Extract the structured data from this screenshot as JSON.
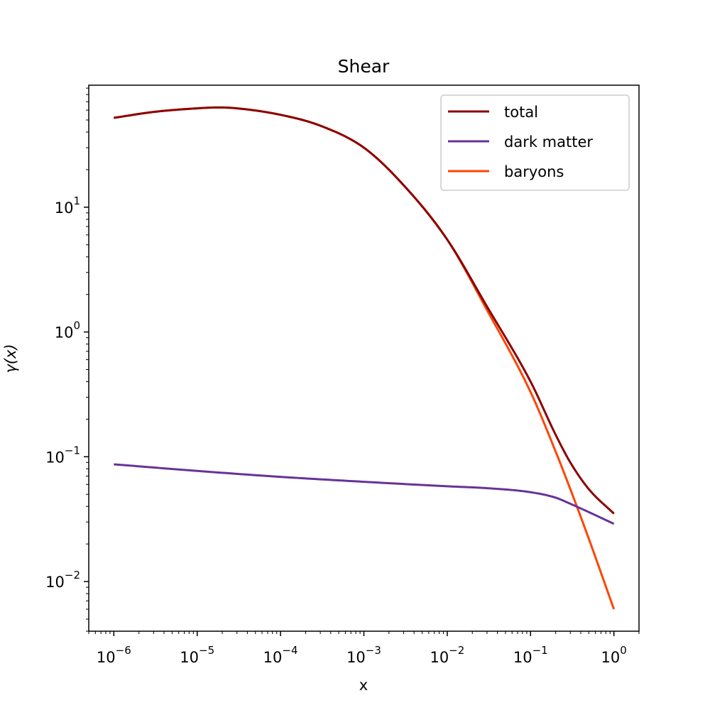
{
  "chart_data": {
    "type": "line",
    "title": "Shear",
    "xlabel": "x",
    "ylabel": "γ(x)",
    "x_scale": "log",
    "y_scale": "log",
    "xlim": [
      5e-07,
      2
    ],
    "ylim": [
      0.004,
      95
    ],
    "x_ticks": [
      {
        "value": 1e-06,
        "base": "10",
        "exp": "−6"
      },
      {
        "value": 1e-05,
        "base": "10",
        "exp": "−5"
      },
      {
        "value": 0.0001,
        "base": "10",
        "exp": "−4"
      },
      {
        "value": 0.001,
        "base": "10",
        "exp": "−3"
      },
      {
        "value": 0.01,
        "base": "10",
        "exp": "−2"
      },
      {
        "value": 0.1,
        "base": "10",
        "exp": "−1"
      },
      {
        "value": 1,
        "base": "10",
        "exp": "0"
      }
    ],
    "y_ticks": [
      {
        "value": 0.01,
        "base": "10",
        "exp": "−2"
      },
      {
        "value": 0.1,
        "base": "10",
        "exp": "−1"
      },
      {
        "value": 1,
        "base": "10",
        "exp": "0"
      },
      {
        "value": 10,
        "base": "10",
        "exp": "1"
      }
    ],
    "legend_position": "top-right",
    "grid": false,
    "series": [
      {
        "name": "total",
        "color": "#8b0000",
        "x": [
          1e-06,
          3e-06,
          1e-05,
          1.8e-05,
          3e-05,
          0.0001,
          0.0003,
          0.001,
          0.003,
          0.01,
          0.03,
          0.1,
          0.2,
          0.3,
          0.5,
          1
        ],
        "y": [
          52,
          58,
          62,
          63,
          62,
          55,
          45,
          30,
          15,
          5.5,
          1.6,
          0.4,
          0.15,
          0.09,
          0.055,
          0.035
        ]
      },
      {
        "name": "dark matter",
        "color": "#663399",
        "x": [
          1e-06,
          1e-05,
          0.0001,
          0.001,
          0.01,
          0.03,
          0.1,
          0.2,
          0.3,
          0.5,
          1
        ],
        "y": [
          0.087,
          0.077,
          0.069,
          0.063,
          0.058,
          0.056,
          0.052,
          0.047,
          0.042,
          0.036,
          0.029
        ]
      },
      {
        "name": "baryons",
        "color": "#ff4500",
        "x": [
          1e-06,
          3e-06,
          1e-05,
          1.8e-05,
          3e-05,
          0.0001,
          0.0003,
          0.001,
          0.003,
          0.01,
          0.03,
          0.1,
          0.2,
          0.3,
          0.5,
          1
        ],
        "y": [
          52,
          58,
          62,
          63,
          62,
          55,
          45,
          30,
          15,
          5.5,
          1.5,
          0.33,
          0.11,
          0.055,
          0.022,
          0.006
        ]
      }
    ]
  }
}
